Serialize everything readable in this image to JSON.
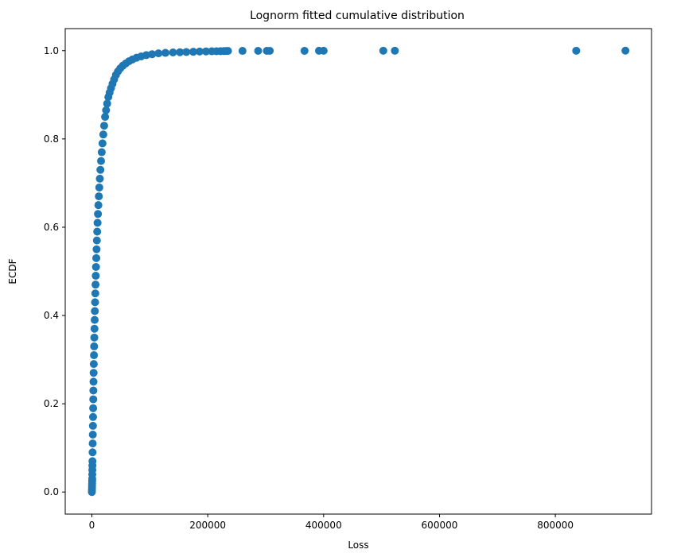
{
  "chart_data": {
    "type": "scatter",
    "title": "Lognorm fitted cumulative distribution",
    "xlabel": "Loss",
    "ylabel": "ECDF",
    "xlim": [
      -46000,
      966000
    ],
    "ylim": [
      -0.05,
      1.05
    ],
    "xticks": [
      0,
      200000,
      400000,
      600000,
      800000
    ],
    "xtick_labels": [
      "0",
      "200000",
      "400000",
      "600000",
      "800000"
    ],
    "yticks": [
      0.0,
      0.2,
      0.4,
      0.6,
      0.8,
      1.0
    ],
    "ytick_labels": [
      "0.0",
      "0.2",
      "0.4",
      "0.6",
      "0.8",
      "1.0"
    ],
    "grid": false,
    "legend": "none",
    "marker_color": "#1f77b4",
    "series": [
      {
        "x": [
          0,
          100,
          200,
          300,
          400,
          500,
          600,
          700,
          800,
          900,
          1000,
          1200,
          1400,
          1600,
          1800,
          2000,
          2200,
          2400,
          2600,
          2800,
          3000,
          3300,
          3600,
          3900,
          4200,
          4500,
          4800,
          5100,
          5500,
          5900,
          6300,
          6700,
          7100,
          7600,
          8100,
          8600,
          9200,
          9800,
          10500,
          11200,
          12000,
          12800,
          13700,
          14700,
          15800,
          17000,
          18300,
          19700,
          21200,
          22800,
          24500,
          26400,
          28400,
          30600,
          33000,
          35600,
          38400,
          41500,
          45000,
          49000,
          53500,
          58500,
          64000,
          70000,
          77000,
          85000,
          94000,
          104000,
          115000,
          127000,
          140000,
          152000,
          163000,
          175000,
          186000,
          197000,
          207000,
          215000,
          222000,
          228000,
          232000,
          235000,
          260000,
          287000,
          302000,
          307000,
          367000,
          392000,
          400000,
          503000,
          523000,
          836000,
          921000
        ],
        "y": [
          0.0,
          0.005,
          0.01,
          0.015,
          0.02,
          0.025,
          0.03,
          0.04,
          0.05,
          0.06,
          0.07,
          0.09,
          0.11,
          0.13,
          0.15,
          0.17,
          0.19,
          0.21,
          0.23,
          0.25,
          0.27,
          0.29,
          0.31,
          0.33,
          0.35,
          0.37,
          0.39,
          0.41,
          0.43,
          0.45,
          0.47,
          0.49,
          0.51,
          0.53,
          0.55,
          0.57,
          0.59,
          0.61,
          0.63,
          0.65,
          0.67,
          0.69,
          0.71,
          0.73,
          0.75,
          0.77,
          0.79,
          0.81,
          0.83,
          0.85,
          0.865,
          0.88,
          0.895,
          0.905,
          0.915,
          0.925,
          0.935,
          0.945,
          0.953,
          0.96,
          0.966,
          0.971,
          0.976,
          0.98,
          0.984,
          0.987,
          0.99,
          0.992,
          0.994,
          0.995,
          0.996,
          0.9965,
          0.997,
          0.9975,
          0.998,
          0.9983,
          0.9986,
          0.9988,
          0.999,
          0.9992,
          0.9993,
          0.9994,
          0.9995,
          0.9996,
          0.9996,
          0.9997,
          0.9997,
          0.9998,
          0.9998,
          0.9999,
          0.9999,
          0.9999,
          1.0
        ]
      }
    ]
  }
}
